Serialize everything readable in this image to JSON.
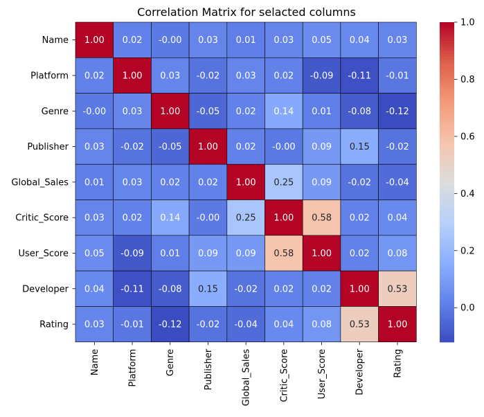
{
  "chart_data": {
    "type": "heatmap",
    "title": "Correlation Matrix for selacted columns",
    "row_labels": [
      "Name",
      "Platform",
      "Genre",
      "Publisher",
      "Global_Sales",
      "Critic_Score",
      "User_Score",
      "Developer",
      "Rating"
    ],
    "col_labels": [
      "Name",
      "Platform",
      "Genre",
      "Publisher",
      "Global_Sales",
      "Critic_Score",
      "User_Score",
      "Developer",
      "Rating"
    ],
    "values": [
      [
        1.0,
        0.02,
        -0.0,
        0.03,
        0.01,
        0.03,
        0.05,
        0.04,
        0.03
      ],
      [
        0.02,
        1.0,
        0.03,
        -0.02,
        0.03,
        0.02,
        -0.09,
        -0.11,
        -0.01
      ],
      [
        -0.0,
        0.03,
        1.0,
        -0.05,
        0.02,
        0.14,
        0.01,
        -0.08,
        -0.12
      ],
      [
        0.03,
        -0.02,
        -0.05,
        1.0,
        0.02,
        -0.0,
        0.09,
        0.15,
        -0.02
      ],
      [
        0.01,
        0.03,
        0.02,
        0.02,
        1.0,
        0.25,
        0.09,
        -0.02,
        -0.04
      ],
      [
        0.03,
        0.02,
        0.14,
        -0.0,
        0.25,
        1.0,
        0.58,
        0.02,
        0.04
      ],
      [
        0.05,
        -0.09,
        0.01,
        0.09,
        0.09,
        0.58,
        1.0,
        0.02,
        0.08
      ],
      [
        0.04,
        -0.11,
        -0.08,
        0.15,
        -0.02,
        0.02,
        0.02,
        1.0,
        0.53
      ],
      [
        0.03,
        -0.01,
        -0.12,
        -0.02,
        -0.04,
        0.04,
        0.08,
        0.53,
        1.0
      ]
    ],
    "colormap": "coolwarm",
    "vmin": -0.12,
    "vmax": 1.0,
    "colorbar_ticks": [
      -0.0,
      0.2,
      0.4,
      0.6,
      0.8,
      1.0
    ],
    "colorbar_tick_labels": [
      "0.0",
      "0.2",
      "0.4",
      "0.6",
      "0.8",
      "1.0"
    ],
    "annot_format": "0.00",
    "cell_border_color": "#000000",
    "grid": false
  }
}
